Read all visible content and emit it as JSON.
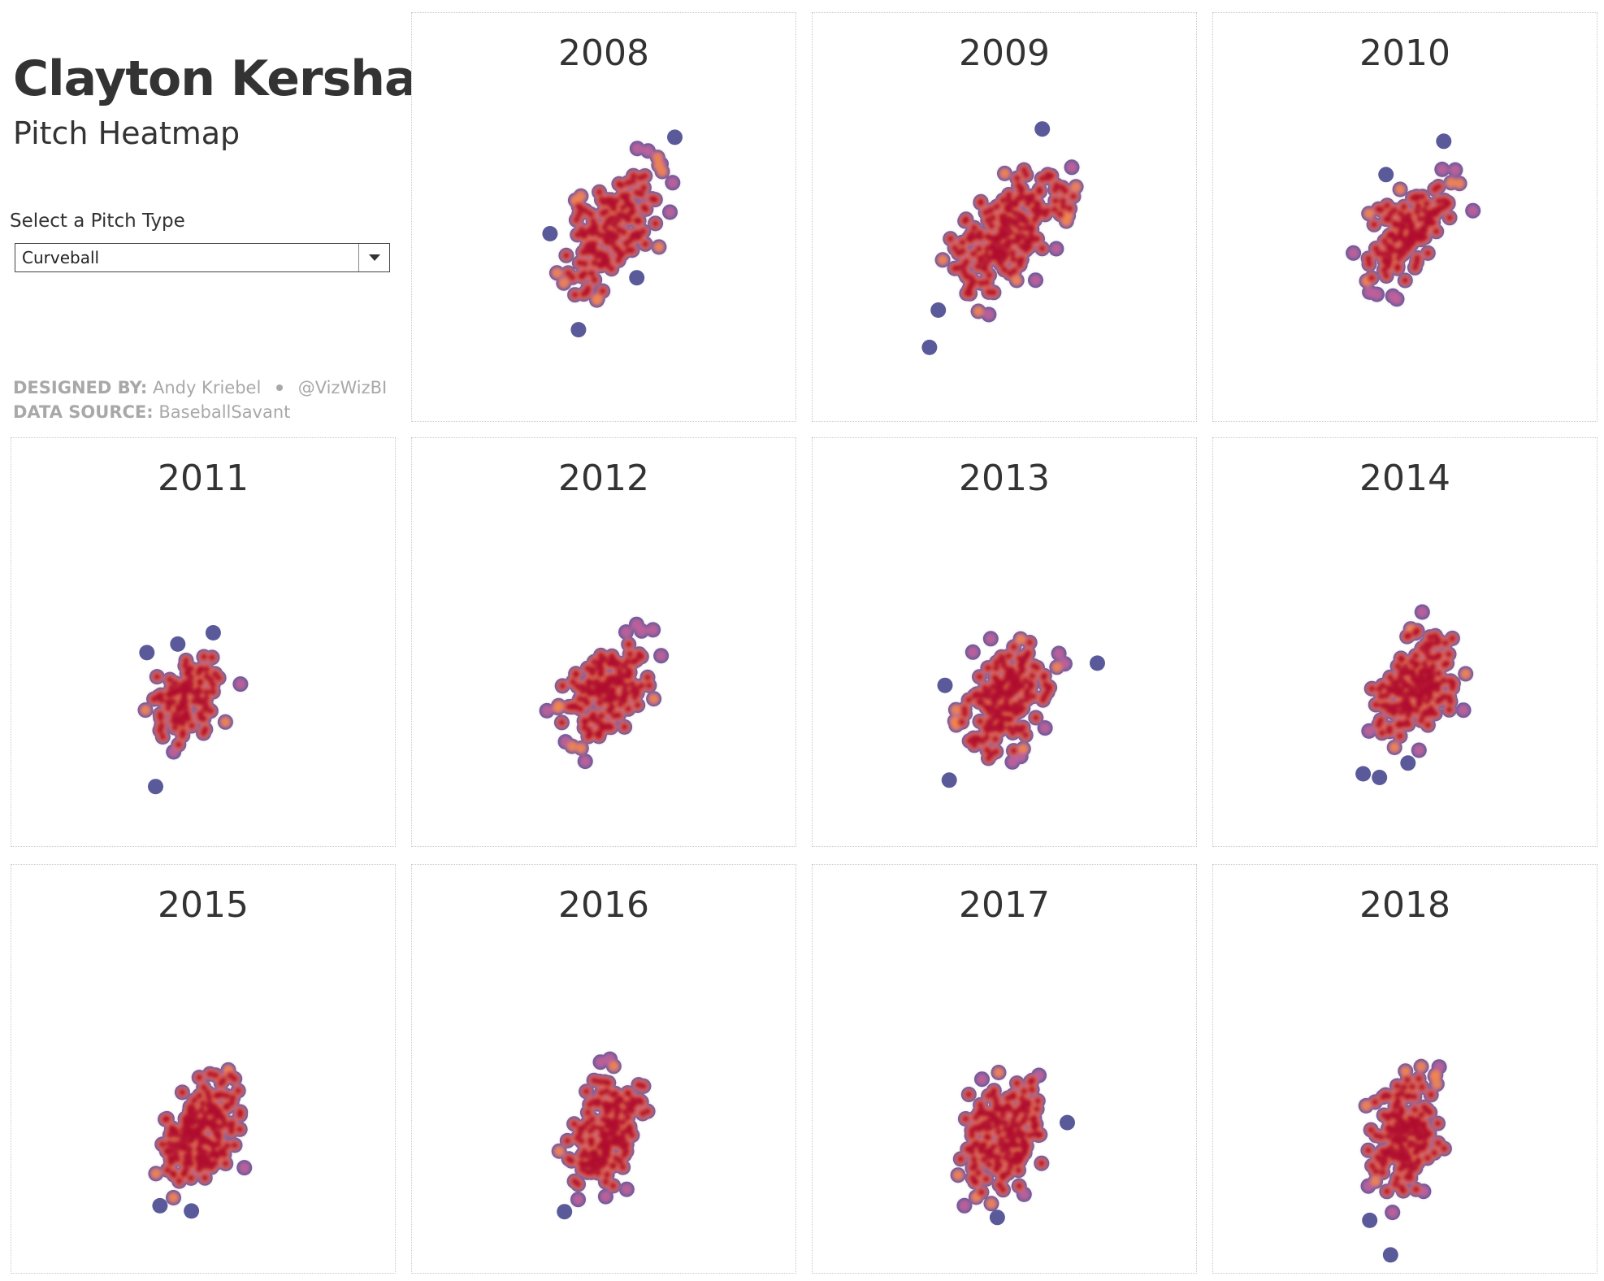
{
  "header": {
    "title": "Clayton Kershaw",
    "subtitle": "Pitch Heatmap",
    "filter_label": "Select a Pitch Type",
    "filter_value": "Curveball"
  },
  "credits": {
    "designed_label": "DESIGNED BY:",
    "designer": "Andy Kriebel",
    "twitter": "@VizWizBI",
    "source_label": "DATA SOURCE:",
    "source": "BaseballSavant"
  },
  "colors": {
    "cold": "#5a5a9a",
    "mid": "#c2609a",
    "warm": "#f0884a",
    "hot": "#b01030",
    "text": "#333333",
    "muted": "#a8a8a8"
  },
  "chart_data": {
    "type": "heatmap",
    "title": "Clayton Kershaw Pitch Heatmap",
    "pitch_type": "Curveball",
    "xlabel": "",
    "ylabel": "",
    "xlim": [
      -3,
      3
    ],
    "ylim": [
      -1,
      5
    ],
    "panels": [
      {
        "year": "2008",
        "cx": 0.1,
        "cy": 2.1,
        "sx": 0.42,
        "sy": 0.55,
        "corr": 0.55,
        "n": 150,
        "seed": 11
      },
      {
        "year": "2009",
        "cx": 0.0,
        "cy": 2.0,
        "sx": 0.55,
        "sy": 0.58,
        "corr": 0.62,
        "n": 190,
        "seed": 23
      },
      {
        "year": "2010",
        "cx": 0.1,
        "cy": 2.2,
        "sx": 0.4,
        "sy": 0.48,
        "corr": 0.55,
        "n": 130,
        "seed": 37
      },
      {
        "year": "2011",
        "cx": -0.3,
        "cy": 1.4,
        "sx": 0.3,
        "sy": 0.42,
        "corr": 0.3,
        "n": 105,
        "seed": 41
      },
      {
        "year": "2012",
        "cx": 0.0,
        "cy": 1.5,
        "sx": 0.4,
        "sy": 0.42,
        "corr": 0.45,
        "n": 150,
        "seed": 53
      },
      {
        "year": "2013",
        "cx": 0.0,
        "cy": 1.4,
        "sx": 0.42,
        "sy": 0.48,
        "corr": 0.35,
        "n": 175,
        "seed": 67
      },
      {
        "year": "2014",
        "cx": 0.2,
        "cy": 1.6,
        "sx": 0.4,
        "sy": 0.48,
        "corr": 0.45,
        "n": 170,
        "seed": 71
      },
      {
        "year": "2015",
        "cx": -0.1,
        "cy": 1.2,
        "sx": 0.38,
        "sy": 0.5,
        "corr": 0.45,
        "n": 190,
        "seed": 83
      },
      {
        "year": "2016",
        "cx": 0.0,
        "cy": 1.2,
        "sx": 0.33,
        "sy": 0.5,
        "corr": 0.25,
        "n": 160,
        "seed": 97
      },
      {
        "year": "2017",
        "cx": 0.0,
        "cy": 1.2,
        "sx": 0.36,
        "sy": 0.5,
        "corr": 0.15,
        "n": 170,
        "seed": 101
      },
      {
        "year": "2018",
        "cx": 0.0,
        "cy": 1.2,
        "sx": 0.3,
        "sy": 0.52,
        "corr": 0.15,
        "n": 160,
        "seed": 113
      }
    ]
  }
}
